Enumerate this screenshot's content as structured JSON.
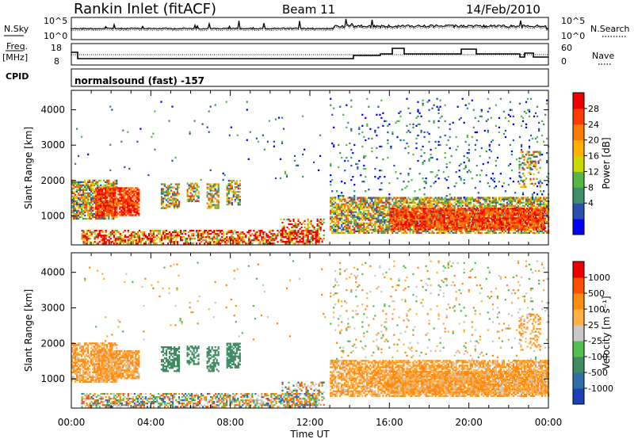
{
  "header": {
    "title": "Rankin Inlet (fitACF)",
    "beam": "Beam 11",
    "date": "14/Feb/2010"
  },
  "top_panels": {
    "nsky_label": "N.Sky",
    "nsky_ticks": [
      "10^5",
      "10^0"
    ],
    "nsearch_label": "N.Search",
    "nsearch_ticks": [
      "10^5",
      "10^0"
    ],
    "freq_label_line1": "Freq.",
    "freq_label_line2": "[MHz]",
    "freq_ticks": [
      "18",
      "8"
    ],
    "nave_label": "Nave",
    "nave_ticks": [
      "60",
      "0"
    ],
    "cpid_label": "CPID",
    "cpid_text": "normalsound (fast) -157"
  },
  "chart_data": [
    {
      "type": "heatmap",
      "name": "power-panel",
      "xlabel": "Time UT",
      "ylabel": "Slant Range [km]",
      "xlim_hours": [
        0,
        24
      ],
      "ylim_km": [
        180,
        4550
      ],
      "y_ticks": [
        1000,
        2000,
        3000,
        4000
      ],
      "colorbar_label": "Power [dB]",
      "colorbar_ticks": [
        "28",
        "24",
        "20",
        "16",
        "12",
        "8",
        "4"
      ],
      "colorbar_colors": [
        "#0000ff",
        "#2a4fb0",
        "#3f8f6a",
        "#55b845",
        "#c8d800",
        "#ffb000",
        "#ff7a00",
        "#ff3b00",
        "#ee0000"
      ]
    },
    {
      "type": "heatmap",
      "name": "velocity-panel",
      "xlabel": "Time UT",
      "ylabel": "Slant Range [km]",
      "xlim_hours": [
        0,
        24
      ],
      "ylim_km": [
        180,
        4550
      ],
      "y_ticks": [
        1000,
        2000,
        3000,
        4000
      ],
      "x_ticks": [
        "00:00",
        "04:00",
        "08:00",
        "12:00",
        "16:00",
        "20:00",
        "00:00"
      ],
      "colorbar_label": "Velocity [m s⁻¹]",
      "colorbar_ticks": [
        "1000",
        "500",
        "100",
        "25",
        "-25",
        "-100",
        "-500",
        "-1000"
      ],
      "colorbar_colors": [
        "#1b3fb8",
        "#2f6fa8",
        "#3e8b60",
        "#52c050",
        "#c8c8c8",
        "#ffb040",
        "#ff8a10",
        "#ff5000",
        "#ee0000"
      ]
    }
  ],
  "footer": {
    "xlabel": "Time UT"
  }
}
